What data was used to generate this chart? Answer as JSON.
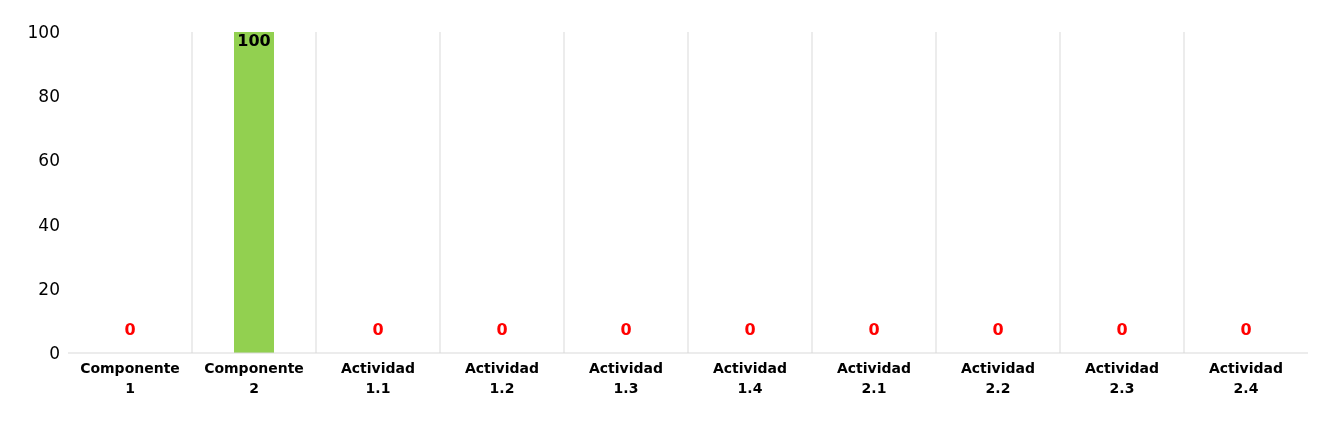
{
  "chart_data": {
    "type": "bar",
    "categories": [
      "Componente 1",
      "Componente 2",
      "Actividad 1.1",
      "Actividad 1.2",
      "Actividad 1.3",
      "Actividad 1.4",
      "Actividad 2.1",
      "Actividad 2.2",
      "Actividad 2.3",
      "Actividad 2.4"
    ],
    "values": [
      0,
      100,
      0,
      0,
      0,
      0,
      0,
      0,
      0,
      0
    ],
    "color": "#92d050",
    "ylim": [
      0,
      100
    ],
    "yticks": [
      0,
      20,
      40,
      60,
      80,
      100
    ],
    "grid": "x",
    "data_labels": true
  }
}
